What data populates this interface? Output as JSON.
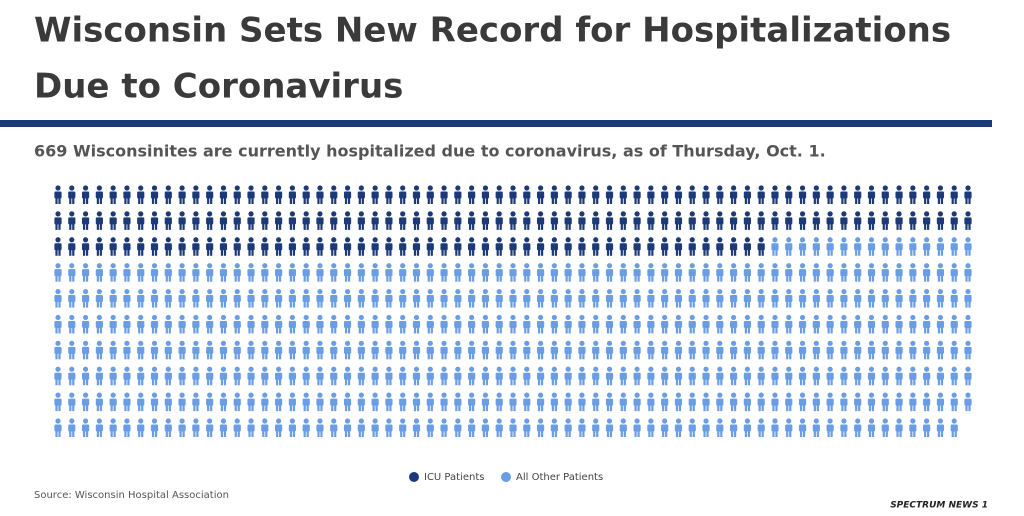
{
  "chart_data": {
    "type": "pictogram",
    "title": "Wisconsin Sets New Record for Hospitalizations Due to Coronavirus",
    "title_lines": [
      "Wisconsin Sets New Record for Hospitalizations",
      "Due to Coronavirus"
    ],
    "subtitle": "669 Wisconsinites are currently hospitalized due to coronavirus, as of Thursday, Oct. 1.",
    "series": [
      {
        "name": "ICU Patients",
        "color": "#1d3a78",
        "values": [
          186
        ]
      },
      {
        "name": "All Other Patients",
        "color": "#6a9de3",
        "values": [
          483
        ]
      }
    ],
    "rows": 10,
    "source": "Source: Wisconsin Hospital Association",
    "logo": "SPECTRUM NEWS 1"
  }
}
